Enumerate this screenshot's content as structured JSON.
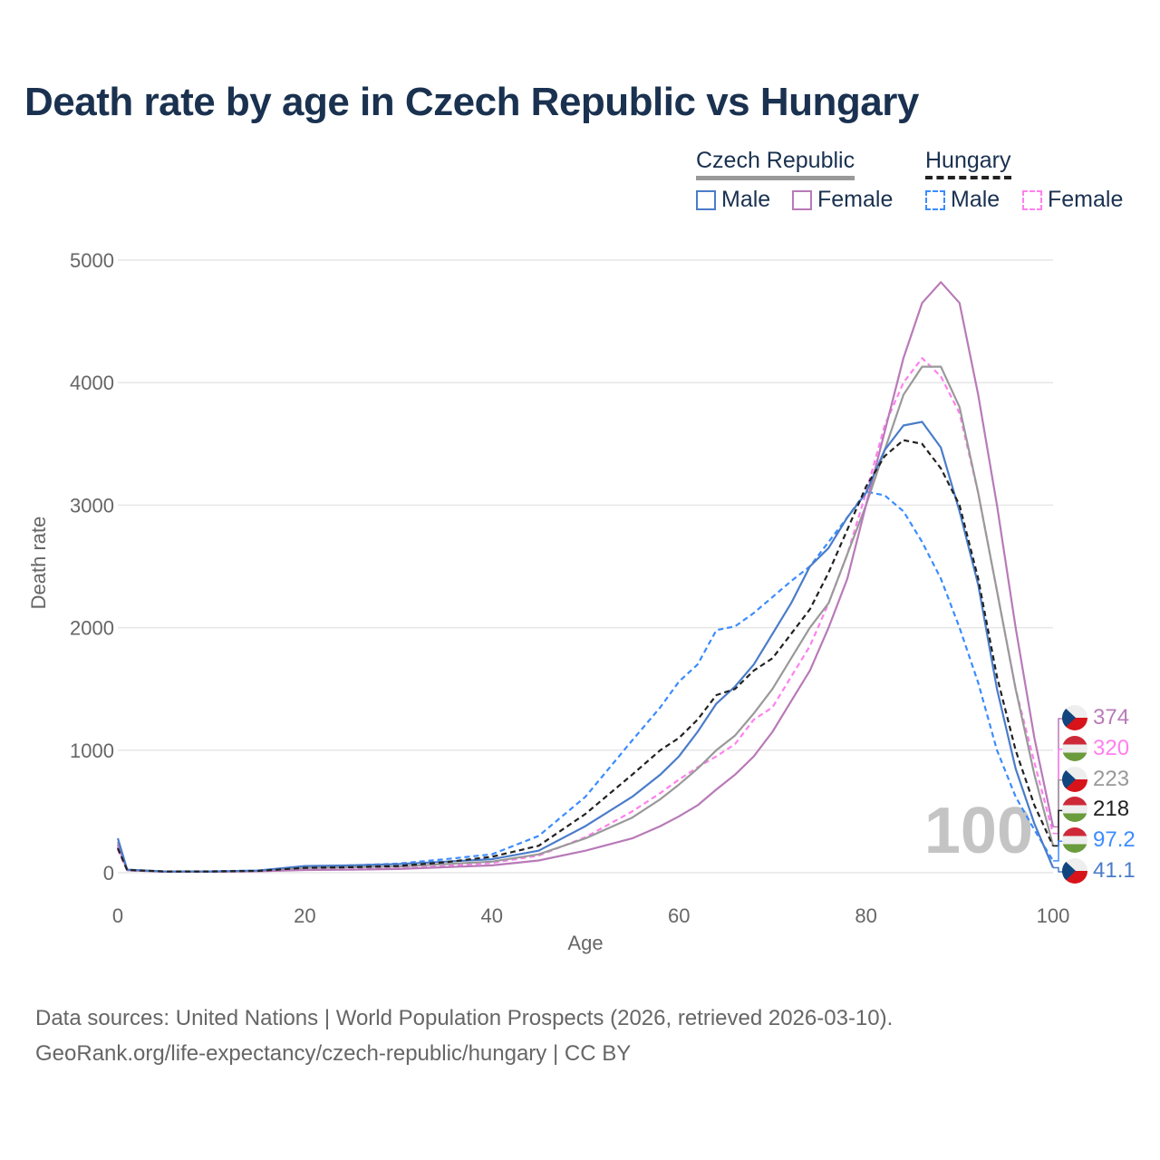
{
  "title": "Death rate by age in Czech Republic vs Hungary",
  "legend": {
    "groups": [
      {
        "name": "Czech Republic",
        "items": [
          "Male",
          "Female"
        ]
      },
      {
        "name": "Hungary",
        "items": [
          "Male",
          "Female"
        ]
      }
    ]
  },
  "watermark": "100",
  "end_labels": [
    {
      "value": "374",
      "country": "cz",
      "color": "#b87ab8"
    },
    {
      "value": "320",
      "country": "hu",
      "color": "#ff80ee"
    },
    {
      "value": "223",
      "country": "cz",
      "color": "#999999"
    },
    {
      "value": "218",
      "country": "hu",
      "color": "#222222"
    },
    {
      "value": "97.2",
      "country": "hu",
      "color": "#3b8cff"
    },
    {
      "value": "41.1",
      "country": "cz",
      "color": "#4a7cc9"
    }
  ],
  "source": {
    "line1": "Data sources: United Nations | World Population Prospects (2026, retrieved 2026-03-10).",
    "line2": "GeoRank.org/life-expectancy/czech-republic/hungary | CC BY"
  },
  "chart_data": {
    "type": "line",
    "title": "Death rate by age in Czech Republic vs Hungary",
    "xlabel": "Age",
    "ylabel": "Death rate",
    "xlim": [
      0,
      100
    ],
    "ylim": [
      0,
      5000
    ],
    "xticks": [
      "0",
      "20",
      "40",
      "60",
      "80",
      "100"
    ],
    "yticks": [
      "0",
      "1000",
      "2000",
      "3000",
      "4000",
      "5000"
    ],
    "grid": true,
    "legend_position": "top-right",
    "x": [
      0,
      1,
      5,
      10,
      15,
      20,
      25,
      30,
      35,
      40,
      45,
      50,
      55,
      58,
      60,
      62,
      64,
      66,
      68,
      70,
      72,
      74,
      76,
      78,
      80,
      82,
      84,
      86,
      88,
      90,
      92,
      94,
      96,
      98,
      100
    ],
    "series": [
      {
        "name": "Hungary Female",
        "color": "#ff80ee",
        "dash": true,
        "values": [
          190,
          20,
          8,
          8,
          12,
          25,
          28,
          35,
          55,
          80,
          140,
          290,
          500,
          650,
          760,
          860,
          950,
          1050,
          1250,
          1350,
          1600,
          1850,
          2200,
          2600,
          3100,
          3650,
          4000,
          4200,
          4050,
          3750,
          3100,
          2300,
          1500,
          900,
          320
        ]
      },
      {
        "name": "Hungary Male",
        "color": "#3b8cff",
        "dash": true,
        "values": [
          210,
          24,
          10,
          12,
          18,
          50,
          60,
          75,
          110,
          150,
          300,
          620,
          1080,
          1350,
          1560,
          1700,
          1980,
          2010,
          2120,
          2250,
          2380,
          2500,
          2700,
          2900,
          3110,
          3080,
          2950,
          2700,
          2400,
          2000,
          1550,
          1000,
          620,
          350,
          97.2
        ]
      },
      {
        "name": "Czech Republic Total",
        "color": "#999999",
        "dash": false,
        "values": [
          250,
          22,
          9,
          9,
          15,
          40,
          45,
          50,
          70,
          90,
          150,
          280,
          450,
          600,
          720,
          850,
          1000,
          1120,
          1300,
          1500,
          1750,
          2000,
          2200,
          2600,
          3000,
          3450,
          3900,
          4130,
          4130,
          3800,
          3100,
          2300,
          1500,
          800,
          223
        ]
      },
      {
        "name": "Czech Republic Female",
        "color": "#b87ab8",
        "dash": false,
        "values": [
          230,
          20,
          8,
          8,
          12,
          22,
          25,
          30,
          45,
          60,
          100,
          180,
          280,
          380,
          460,
          550,
          680,
          800,
          950,
          1150,
          1400,
          1650,
          2000,
          2400,
          3000,
          3600,
          4200,
          4650,
          4820,
          4650,
          3900,
          3000,
          2000,
          1100,
          374
        ]
      },
      {
        "name": "Czech Republic Male",
        "color": "#4a7cc9",
        "dash": false,
        "values": [
          280,
          25,
          10,
          10,
          18,
          55,
          60,
          70,
          90,
          110,
          180,
          380,
          620,
          800,
          950,
          1150,
          1380,
          1520,
          1700,
          1950,
          2200,
          2500,
          2650,
          2900,
          3100,
          3450,
          3650,
          3680,
          3470,
          2950,
          2350,
          1500,
          850,
          400,
          41.1
        ]
      },
      {
        "name": "Hungary Total",
        "color": "#222222",
        "dash": true,
        "values": [
          200,
          22,
          10,
          10,
          15,
          40,
          45,
          55,
          85,
          130,
          220,
          480,
          800,
          1000,
          1100,
          1250,
          1450,
          1500,
          1650,
          1750,
          1950,
          2150,
          2450,
          2800,
          3150,
          3400,
          3530,
          3500,
          3300,
          3000,
          2400,
          1600,
          1000,
          550,
          218
        ]
      }
    ]
  }
}
